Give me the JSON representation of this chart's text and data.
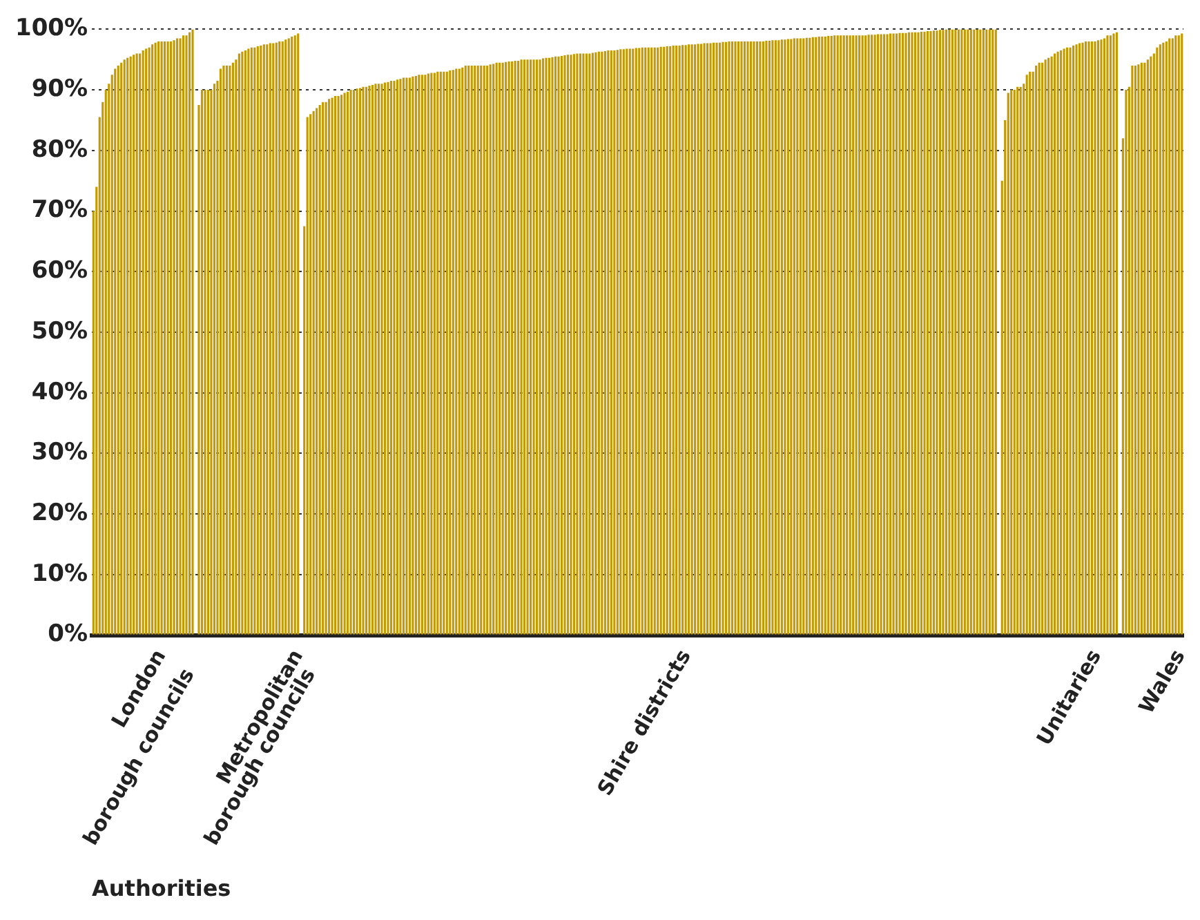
{
  "chart_data": {
    "type": "bar",
    "xlabel": "Authorities",
    "color": "#c49a00",
    "grid": "y",
    "line_style": "dotted",
    "ylim": [
      0,
      100
    ],
    "yticks": [
      {
        "value": 0,
        "label": "0%"
      },
      {
        "value": 10,
        "label": "10%"
      },
      {
        "value": 20,
        "label": "20%"
      },
      {
        "value": 30,
        "label": "30%"
      },
      {
        "value": 40,
        "label": "40%"
      },
      {
        "value": 50,
        "label": "50%"
      },
      {
        "value": 60,
        "label": "60%"
      },
      {
        "value": 70,
        "label": "70%"
      },
      {
        "value": 80,
        "label": "80%"
      },
      {
        "value": 90,
        "label": "90%"
      },
      {
        "value": 100,
        "label": "100%"
      }
    ],
    "values": [
      70,
      74,
      85.5,
      88,
      90,
      91,
      92.5,
      93.5,
      94,
      94.5,
      95,
      95.3,
      95.5,
      95.8,
      96,
      96,
      96.5,
      96.8,
      97,
      97.5,
      97.8,
      98,
      98,
      98,
      98,
      98,
      98.2,
      98.5,
      98.5,
      99,
      99,
      99.5,
      100,
      null,
      87.5,
      90,
      90,
      90,
      90,
      91,
      91.5,
      93.5,
      94,
      94,
      94,
      94.5,
      95,
      96,
      96.3,
      96.5,
      96.8,
      97,
      97,
      97.2,
      97.3,
      97.5,
      97.5,
      97.7,
      97.7,
      97.8,
      98,
      98,
      98.3,
      98.5,
      98.8,
      99,
      99.3,
      null,
      67.5,
      85.5,
      86,
      86.5,
      87,
      87.5,
      88,
      88,
      88.5,
      88.7,
      89,
      89,
      89.2,
      89.5,
      89.7,
      90,
      90,
      90.2,
      90.3,
      90.5,
      90.5,
      90.7,
      90.8,
      91,
      91,
      91,
      91.2,
      91.3,
      91.5,
      91.5,
      91.7,
      91.8,
      92,
      92,
      92,
      92.2,
      92.3,
      92.5,
      92.5,
      92.5,
      92.7,
      92.8,
      92.8,
      93,
      93,
      93,
      93,
      93.2,
      93.3,
      93.5,
      93.5,
      93.7,
      94,
      94,
      94,
      94,
      94,
      94,
      94,
      94,
      94.2,
      94.3,
      94.5,
      94.5,
      94.5,
      94.6,
      94.7,
      94.7,
      94.8,
      94.8,
      95,
      95,
      95,
      95,
      95,
      95,
      95,
      95.2,
      95.3,
      95.3,
      95.4,
      95.5,
      95.5,
      95.6,
      95.7,
      95.8,
      95.8,
      95.9,
      96,
      96,
      96,
      96,
      96,
      96.1,
      96.2,
      96.3,
      96.3,
      96.4,
      96.5,
      96.5,
      96.5,
      96.6,
      96.7,
      96.7,
      96.8,
      96.8,
      96.8,
      96.9,
      96.9,
      97,
      97,
      97,
      97,
      97,
      97,
      97.1,
      97.1,
      97.2,
      97.2,
      97.3,
      97.3,
      97.3,
      97.4,
      97.4,
      97.5,
      97.5,
      97.5,
      97.6,
      97.6,
      97.7,
      97.7,
      97.7,
      97.8,
      97.8,
      97.8,
      97.9,
      97.9,
      98,
      98,
      98,
      98,
      98,
      98,
      98,
      98,
      98,
      98,
      98,
      98,
      98.1,
      98.1,
      98.2,
      98.2,
      98.2,
      98.3,
      98.3,
      98.4,
      98.4,
      98.5,
      98.5,
      98.5,
      98.5,
      98.6,
      98.6,
      98.7,
      98.7,
      98.8,
      98.8,
      98.8,
      98.9,
      98.9,
      99,
      99,
      99,
      99,
      99,
      99,
      99,
      99,
      99,
      99,
      99,
      99.1,
      99.1,
      99.1,
      99.2,
      99.2,
      99.2,
      99.2,
      99.3,
      99.3,
      99.3,
      99.4,
      99.4,
      99.4,
      99.5,
      99.5,
      99.5,
      99.5,
      99.6,
      99.6,
      99.7,
      99.7,
      99.8,
      99.8,
      99.9,
      99.9,
      100,
      100,
      100,
      100,
      100,
      100,
      100,
      100,
      100,
      100,
      100,
      100,
      100,
      100,
      100,
      100,
      100,
      null,
      75,
      85,
      89.5,
      90,
      90,
      90.5,
      90.5,
      91,
      92.5,
      93,
      93,
      94,
      94.5,
      94.5,
      95,
      95.3,
      95.5,
      96,
      96.3,
      96.5,
      96.8,
      97,
      97,
      97.3,
      97.5,
      97.7,
      97.8,
      98,
      98,
      98,
      98,
      98.2,
      98.3,
      98.5,
      99,
      99,
      99.3,
      99.5,
      null,
      82,
      90,
      90.5,
      94,
      94,
      94.2,
      94.5,
      94.5,
      95,
      95.5,
      96,
      97,
      97.5,
      97.8,
      98,
      98.5,
      98.5,
      99,
      99,
      99.3
    ],
    "categories": [
      null,
      null,
      null,
      null,
      null,
      null,
      null,
      null,
      null,
      null,
      null,
      null,
      null,
      null,
      null,
      "London\nborough councils",
      null,
      null,
      null,
      null,
      null,
      null,
      null,
      null,
      null,
      null,
      null,
      null,
      null,
      null,
      null,
      null,
      null,
      null,
      null,
      null,
      null,
      null,
      null,
      null,
      null,
      null,
      null,
      null,
      null,
      null,
      null,
      null,
      null,
      null,
      null,
      null,
      null,
      null,
      "Metropolitan\nborough councils",
      null,
      null,
      null,
      null,
      null,
      null,
      null,
      null,
      null,
      null,
      null,
      null,
      null,
      null,
      null,
      null,
      null,
      null,
      null,
      null,
      null,
      null,
      null,
      null,
      null,
      null,
      null,
      null,
      null,
      null,
      null,
      null,
      null,
      null,
      null,
      null,
      null,
      null,
      null,
      null,
      null,
      null,
      null,
      null,
      null,
      null,
      null,
      null,
      null,
      null,
      null,
      null,
      null,
      null,
      null,
      null,
      null,
      null,
      null,
      null,
      null,
      null,
      null,
      null,
      null,
      null,
      null,
      null,
      null,
      null,
      null,
      null,
      null,
      null,
      null,
      null,
      null,
      null,
      null,
      null,
      null,
      null,
      null,
      null,
      null,
      null,
      null,
      null,
      null,
      null,
      null,
      null,
      null,
      null,
      null,
      null,
      null,
      null,
      null,
      null,
      null,
      null,
      null,
      null,
      null,
      null,
      null,
      null,
      null,
      null,
      null,
      null,
      null,
      null,
      null,
      null,
      null,
      null,
      null,
      null,
      null,
      null,
      null,
      "Shire districts",
      null,
      null,
      null,
      null,
      null,
      null,
      null,
      null,
      null,
      null,
      null,
      null,
      null,
      null,
      null,
      null,
      null,
      null,
      null,
      null,
      null,
      null,
      null,
      null,
      null,
      null,
      null,
      null,
      null,
      null,
      null,
      null,
      null,
      null,
      null,
      null,
      null,
      null,
      null,
      null,
      null,
      null,
      null,
      null,
      null,
      null,
      null,
      null,
      null,
      null,
      null,
      null,
      null,
      null,
      null,
      null,
      null,
      null,
      null,
      null,
      null,
      null,
      null,
      null,
      null,
      null,
      null,
      null,
      null,
      null,
      null,
      null,
      null,
      null,
      null,
      null,
      null,
      null,
      null,
      null,
      null,
      null,
      null,
      null,
      null,
      null,
      null,
      null,
      null,
      null,
      null,
      null,
      null,
      null,
      null,
      null,
      null,
      null,
      null,
      null,
      null,
      null,
      null,
      null,
      null,
      null,
      null,
      null,
      null,
      null,
      null,
      null,
      null,
      null,
      null,
      null,
      null,
      null,
      null,
      null,
      null,
      null,
      null,
      null,
      null,
      null,
      null,
      null,
      null,
      null,
      null,
      null,
      null,
      null,
      null,
      null,
      "Unitaries",
      null,
      null,
      null,
      null,
      null,
      null,
      null,
      null,
      null,
      null,
      null,
      null,
      null,
      null,
      null,
      null,
      null,
      null,
      null,
      null,
      null,
      null,
      null,
      null,
      null,
      null,
      null,
      null,
      null,
      "Wales",
      null,
      null,
      null,
      null,
      null,
      null
    ]
  }
}
